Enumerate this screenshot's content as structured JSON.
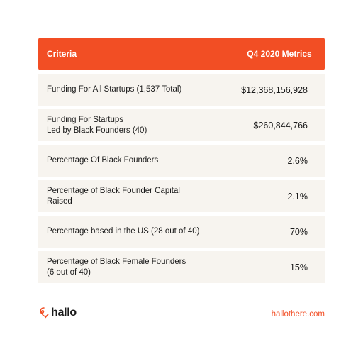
{
  "table": {
    "header": {
      "criteria": "Criteria",
      "metrics": "Q4 2020 Metrics"
    },
    "rows": [
      {
        "label_line1": "Funding For All Startups (1,537 Total)",
        "label_line2": "",
        "value": "$12,368,156,928"
      },
      {
        "label_line1": "Funding For Startups",
        "label_line2": "Led by Black Founders (40)",
        "value": "$260,844,766"
      },
      {
        "label_line1": "Percentage Of Black Founders",
        "label_line2": "",
        "value": "2.6%"
      },
      {
        "label_line1": "Percentage of Black Founder Capital Raised",
        "label_line2": "",
        "value": "2.1%"
      },
      {
        "label_line1": "Percentage based in the US (28 out of 40)",
        "label_line2": "",
        "value": "70%"
      },
      {
        "label_line1": "Percentage of Black Female Founders",
        "label_line2": "(6 out of 40)",
        "value": "15%"
      }
    ]
  },
  "footer": {
    "brand": "hallo",
    "url": "hallothere.com",
    "logo_icon": "hallo-logo-icon",
    "accent_color": "#f24e24"
  }
}
